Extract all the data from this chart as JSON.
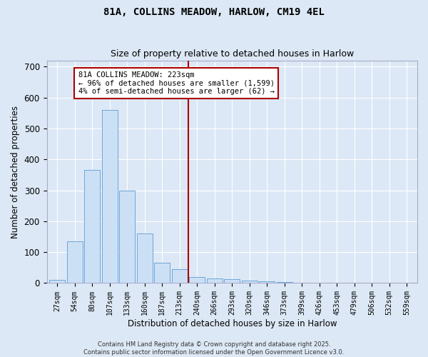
{
  "title1": "81A, COLLINS MEADOW, HARLOW, CM19 4EL",
  "title2": "Size of property relative to detached houses in Harlow",
  "xlabel": "Distribution of detached houses by size in Harlow",
  "ylabel": "Number of detached properties",
  "bar_labels": [
    "27sqm",
    "54sqm",
    "80sqm",
    "107sqm",
    "133sqm",
    "160sqm",
    "187sqm",
    "213sqm",
    "240sqm",
    "266sqm",
    "293sqm",
    "320sqm",
    "346sqm",
    "373sqm",
    "399sqm",
    "426sqm",
    "453sqm",
    "479sqm",
    "506sqm",
    "532sqm",
    "559sqm"
  ],
  "bar_values": [
    10,
    135,
    365,
    560,
    300,
    160,
    65,
    45,
    20,
    15,
    13,
    7,
    5,
    3,
    2,
    1,
    1,
    0,
    0,
    0,
    0
  ],
  "bar_color": "#cce0f5",
  "bar_edge_color": "#5b9bd5",
  "vline_x": 7.5,
  "vline_color": "#aa0000",
  "annotation_text": "81A COLLINS MEADOW: 223sqm\n← 96% of detached houses are smaller (1,599)\n4% of semi-detached houses are larger (62) →",
  "annotation_box_color": "#aa0000",
  "annotation_fontsize": 7.5,
  "ylim": [
    0,
    720
  ],
  "yticks": [
    0,
    100,
    200,
    300,
    400,
    500,
    600,
    700
  ],
  "background_color": "#dce8f5",
  "grid_color": "#ffffff",
  "footer_text": "Contains HM Land Registry data © Crown copyright and database right 2025.\nContains public sector information licensed under the Open Government Licence v3.0.",
  "title_fontsize": 10,
  "subtitle_fontsize": 9
}
